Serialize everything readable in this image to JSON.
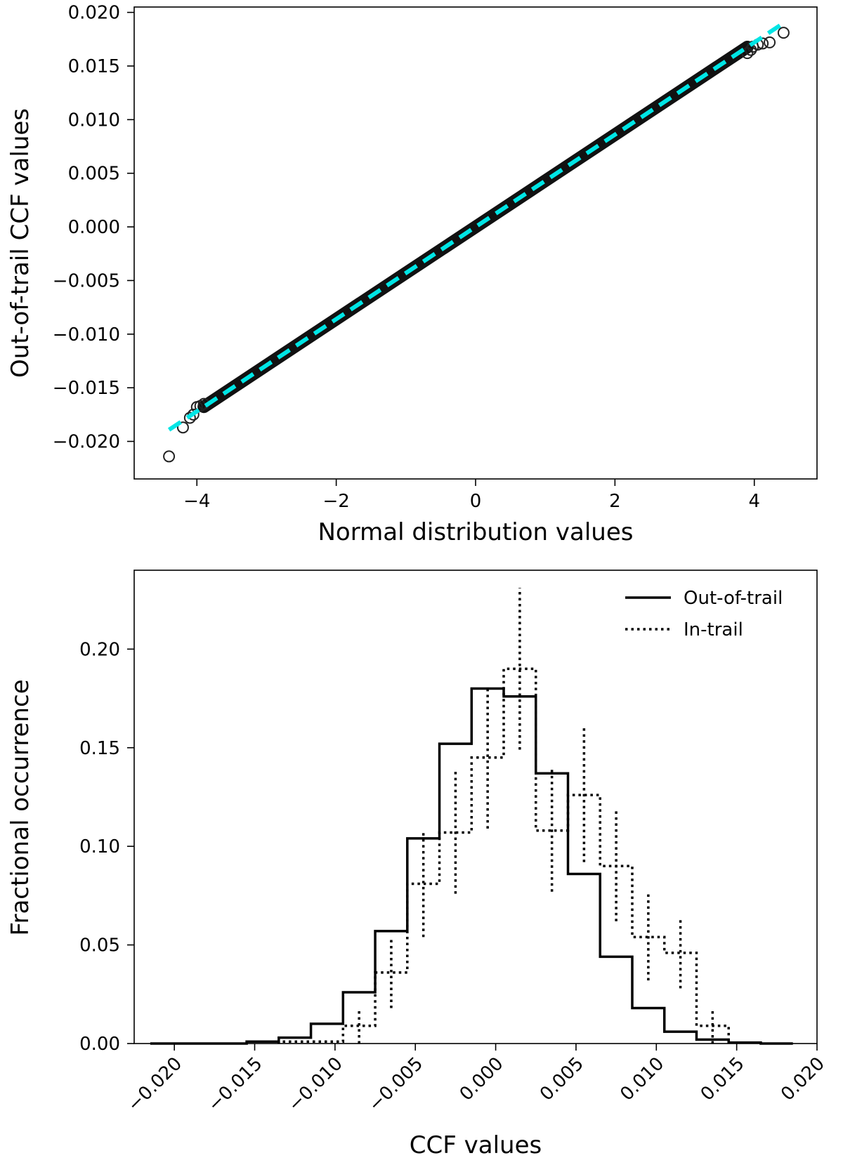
{
  "chart_data": [
    {
      "type": "scatter",
      "title": "",
      "xlabel": "Normal distribution values",
      "ylabel": "Out-of-trail CCF values",
      "xlim": [
        -4.9,
        4.9
      ],
      "ylim": [
        -0.0235,
        0.0205
      ],
      "xticks": [
        -4,
        -2,
        0,
        2,
        4
      ],
      "xtick_labels": [
        "−4",
        "−2",
        "0",
        "2",
        "4"
      ],
      "yticks": [
        -0.02,
        -0.015,
        -0.01,
        -0.005,
        0.0,
        0.005,
        0.01,
        0.015,
        0.02
      ],
      "ytick_labels": [
        "−0.020",
        "−0.015",
        "−0.010",
        "−0.005",
        "0.000",
        "0.005",
        "0.010",
        "0.015",
        "0.020"
      ],
      "grid": false,
      "fit_line": {
        "slope": 0.0043,
        "intercept": 0.0,
        "x_range": [
          -4.4,
          4.4
        ],
        "color": "#00e5e5",
        "style": "dashed"
      },
      "outliers": [
        [
          -4.4,
          -0.0214
        ],
        [
          -4.2,
          -0.0187
        ],
        [
          -4.1,
          -0.0178
        ],
        [
          -4.05,
          -0.0175
        ],
        [
          -4.0,
          -0.0168
        ],
        [
          -3.95,
          -0.0167
        ],
        [
          -3.9,
          -0.0165
        ],
        [
          3.9,
          0.0162
        ],
        [
          3.95,
          0.0165
        ],
        [
          3.98,
          0.0168
        ],
        [
          4.05,
          0.017
        ],
        [
          4.12,
          0.0171
        ],
        [
          4.22,
          0.0172
        ],
        [
          4.42,
          0.0181
        ]
      ],
      "marker": "open-circle",
      "marker_color": "#000000"
    },
    {
      "type": "bar",
      "histogram": true,
      "title": "",
      "xlabel": "CCF values",
      "ylabel": "Fractional occurrence",
      "xlim": [
        -0.0225,
        0.02
      ],
      "ylim": [
        0,
        0.24
      ],
      "xticks": [
        -0.02,
        -0.015,
        -0.01,
        -0.005,
        0.0,
        0.005,
        0.01,
        0.015,
        0.02
      ],
      "xtick_labels": [
        "−0.020",
        "−0.015",
        "−0.010",
        "−0.005",
        "0.000",
        "0.005",
        "0.010",
        "0.015",
        "0.020"
      ],
      "yticks": [
        0.0,
        0.05,
        0.1,
        0.15,
        0.2
      ],
      "ytick_labels": [
        "0.00",
        "0.05",
        "0.10",
        "0.15",
        "0.20"
      ],
      "legend": {
        "position": "top-right",
        "entries": [
          "Out-of-trail",
          "In-trail"
        ]
      },
      "series": [
        {
          "name": "Out-of-trail",
          "style": "solid",
          "bin_edges": [
            -0.0215,
            -0.0195,
            -0.0175,
            -0.0155,
            -0.0135,
            -0.0115,
            -0.0095,
            -0.0075,
            -0.0055,
            -0.0035,
            -0.0015,
            0.0005,
            0.0025,
            0.0045,
            0.0065,
            0.0085,
            0.0105,
            0.0125,
            0.0145,
            0.0165,
            0.0185
          ],
          "values": [
            0.0,
            0.0,
            0.0,
            0.001,
            0.003,
            0.01,
            0.026,
            0.057,
            0.104,
            0.152,
            0.18,
            0.176,
            0.137,
            0.086,
            0.044,
            0.018,
            0.006,
            0.002,
            0.0005,
            0.0
          ]
        },
        {
          "name": "In-trail",
          "style": "dotted",
          "bin_edges": [
            -0.0135,
            -0.0115,
            -0.0095,
            -0.0085,
            -0.0075,
            -0.0065,
            -0.0055,
            -0.0045,
            -0.0035,
            -0.0025,
            -0.0015,
            -0.0005,
            0.0005,
            0.0015,
            0.0025,
            0.0035,
            0.0045,
            0.0055,
            0.0065,
            0.0075,
            0.0085,
            0.0095,
            0.0105,
            0.0115,
            0.0125,
            0.0135,
            0.0145
          ],
          "values": [
            0.001,
            0.001,
            0.009,
            0.009,
            0.036,
            0.036,
            0.081,
            0.081,
            0.107,
            0.107,
            0.145,
            0.145,
            0.19,
            0.19,
            0.108,
            0.108,
            0.126,
            0.126,
            0.09,
            0.09,
            0.054,
            0.054,
            0.046,
            0.046,
            0.009,
            0.009
          ]
        }
      ],
      "error_bars": {
        "series": "In-trail",
        "items": [
          {
            "x": -0.0085,
            "y": 0.009,
            "err": 0.009
          },
          {
            "x": -0.0065,
            "y": 0.036,
            "err": 0.018
          },
          {
            "x": -0.0045,
            "y": 0.081,
            "err": 0.027
          },
          {
            "x": -0.0025,
            "y": 0.107,
            "err": 0.031
          },
          {
            "x": -0.0005,
            "y": 0.145,
            "err": 0.036
          },
          {
            "x": 0.0015,
            "y": 0.19,
            "err": 0.041
          },
          {
            "x": 0.0035,
            "y": 0.108,
            "err": 0.031
          },
          {
            "x": 0.0055,
            "y": 0.126,
            "err": 0.034
          },
          {
            "x": 0.0075,
            "y": 0.09,
            "err": 0.028
          },
          {
            "x": 0.0095,
            "y": 0.054,
            "err": 0.022
          },
          {
            "x": 0.0115,
            "y": 0.046,
            "err": 0.018
          },
          {
            "x": 0.0135,
            "y": 0.009,
            "err": 0.009
          }
        ]
      }
    }
  ]
}
